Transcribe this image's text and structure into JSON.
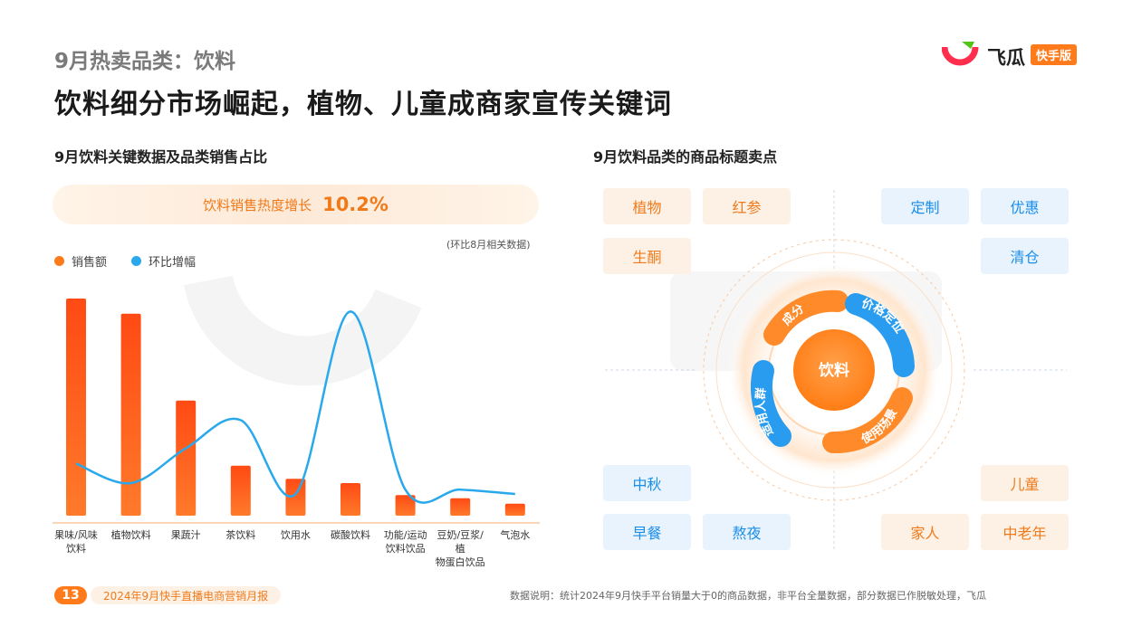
{
  "header": {
    "category_title": "9月热卖品类：饮料",
    "main_title": "饮料细分市场崛起，植物、儿童成商家宣传关键词"
  },
  "logo": {
    "name": "飞瓜",
    "badge": "快手版"
  },
  "left_section": {
    "title": "9月饮料关键数据及品类销售占比",
    "growth_label": "饮料销售热度增长",
    "growth_value": "10.2%",
    "note": "(环比8月相关数据)"
  },
  "chart_data": {
    "type": "bar",
    "categories": [
      "果味/风味饮料",
      "植物饮料",
      "果蔬汁",
      "茶饮料",
      "饮用水",
      "碳酸饮料",
      "功能/运动饮料饮品",
      "豆奶/豆浆/植物蛋白饮品",
      "气泡水"
    ],
    "tick_lines": [
      [
        "果味/风味",
        "饮料"
      ],
      [
        "植物饮料"
      ],
      [
        "果蔬汁"
      ],
      [
        "茶饮料"
      ],
      [
        "饮用水"
      ],
      [
        "碳酸饮料"
      ],
      [
        "功能/运动",
        "饮料饮品"
      ],
      [
        "豆奶/豆浆/植",
        "物蛋白饮品"
      ],
      [
        "气泡水"
      ]
    ],
    "series": [
      {
        "name": "销售额",
        "type": "bar",
        "color": "#ff5a1f",
        "values": [
          100,
          93,
          53,
          23,
          17,
          15,
          9.5,
          8,
          5.5
        ]
      },
      {
        "name": "环比增幅",
        "type": "line",
        "color": "#2aa8ec",
        "values": [
          24,
          15,
          31,
          44,
          10,
          94,
          12,
          12,
          10
        ]
      }
    ],
    "legend_position": "top-left",
    "grid": false,
    "ylim": [
      0,
      100
    ]
  },
  "right_section": {
    "title": "9月饮料品类的商品标题卖点",
    "center_label": "饮料",
    "ring_labels": [
      "成分",
      "价格定位",
      "适用人群",
      "使用场景"
    ],
    "tags_ingredient": [
      "植物",
      "红参",
      "生酮"
    ],
    "tags_price": [
      "定制",
      "优惠",
      "清仓"
    ],
    "tags_scene": [
      "中秋",
      "早餐",
      "熬夜"
    ],
    "tags_people": [
      "儿童",
      "家人",
      "中老年"
    ]
  },
  "footer": {
    "page": "13",
    "report": "2024年9月快手直播电商营销月报",
    "note": "数据说明：统计2024年9月快手平台销量大于0的商品数据，非平台全量数据，部分数据已作脱敏处理，飞瓜"
  },
  "colors": {
    "accent_orange": "#ff7a1a",
    "accent_blue": "#2aa8ec"
  }
}
